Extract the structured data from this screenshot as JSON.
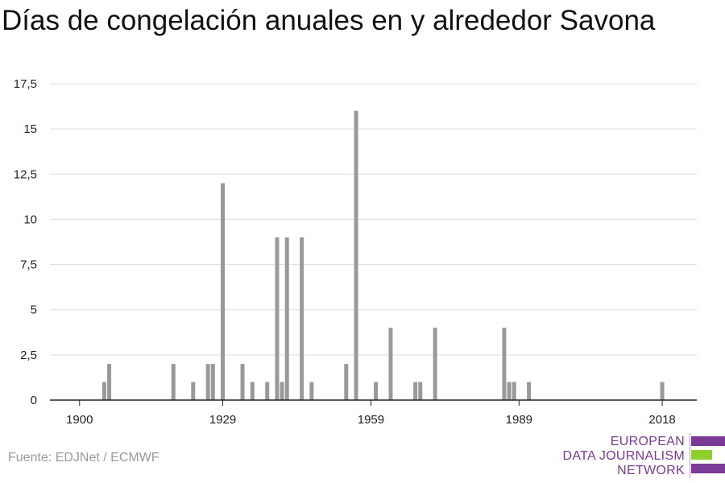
{
  "title": "Días de congelación anuales en y alrededor Savona",
  "source": "Fuente: EDJNet / ECMWF",
  "logo": {
    "lines": [
      "EUROPEAN",
      "DATA JOURNALISM",
      "NETWORK"
    ],
    "colors": {
      "purple": "#7b3a96",
      "green": "#8fd12b"
    }
  },
  "chart_data": {
    "type": "bar",
    "title": "Días de congelación anuales en y alrededor Savona",
    "xlabel": "",
    "ylabel": "",
    "x_range": [
      1894,
      2025
    ],
    "ylim": [
      0,
      17.5
    ],
    "y_ticks": [
      0,
      2.5,
      5,
      7.5,
      10,
      12.5,
      15,
      17.5
    ],
    "y_tick_labels": [
      "0",
      "2,5",
      "5",
      "7,5",
      "10",
      "12,5",
      "15",
      "17,5"
    ],
    "x_ticks": [
      1900,
      1929,
      1959,
      1989,
      2018
    ],
    "x_tick_labels": [
      "1900",
      "1929",
      "1959",
      "1989",
      "2018"
    ],
    "grid": true,
    "bar_color": "#999999",
    "series": [
      {
        "x": [
          1905,
          1906,
          1919,
          1923,
          1926,
          1927,
          1929,
          1933,
          1935,
          1938,
          1940,
          1941,
          1942,
          1945,
          1947,
          1954,
          1956,
          1960,
          1963,
          1968,
          1969,
          1972,
          1986,
          1987,
          1988,
          1991,
          2018
        ],
        "values": [
          1,
          2,
          2,
          1,
          2,
          2,
          12,
          2,
          1,
          1,
          9,
          1,
          9,
          9,
          1,
          2,
          16,
          1,
          4,
          1,
          1,
          4,
          4,
          1,
          1,
          1,
          1
        ]
      }
    ]
  }
}
